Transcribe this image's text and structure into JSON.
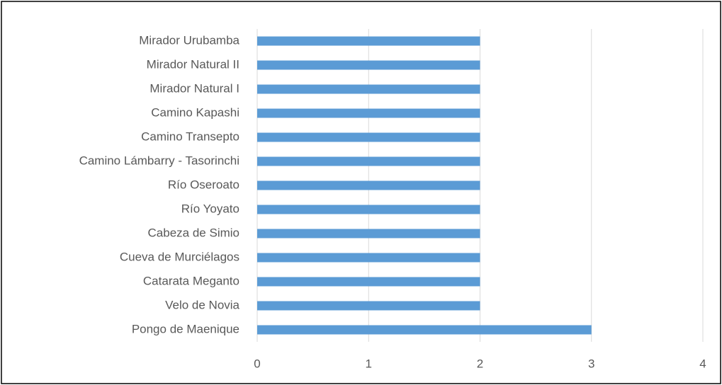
{
  "chart_data": {
    "type": "bar",
    "orientation": "horizontal",
    "categories": [
      "Mirador Urubamba",
      "Mirador Natural II",
      "Mirador Natural I",
      "Camino Kapashi",
      "Camino Transepto",
      "Camino Lámbarry - Tasorinchi",
      "Río Oseroato",
      "Río Yoyato",
      "Cabeza de Simio",
      "Cueva de Murciélagos",
      "Catarata Meganto",
      "Velo de Novia",
      "Pongo de Maenique"
    ],
    "values": [
      2,
      2,
      2,
      2,
      2,
      2,
      2,
      2,
      2,
      2,
      2,
      2,
      3
    ],
    "color": "#5b9bd5",
    "xlim": [
      0,
      4
    ],
    "xticks": [
      0,
      1,
      2,
      3,
      4
    ],
    "grid": true
  }
}
